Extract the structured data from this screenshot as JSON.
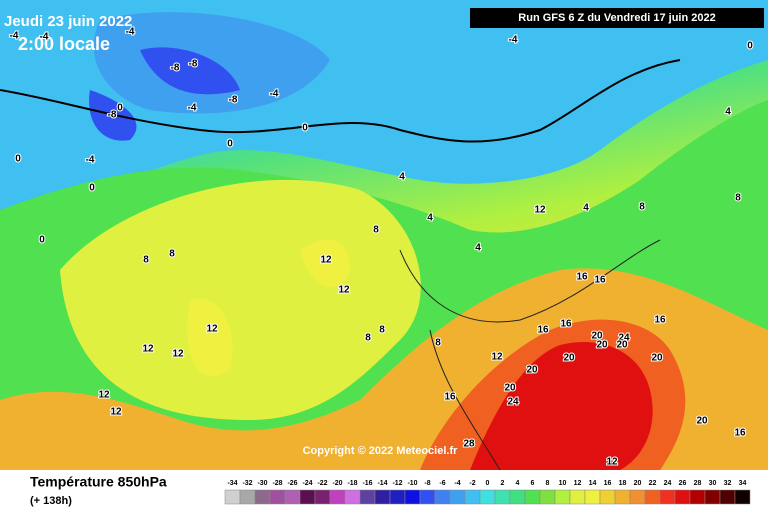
{
  "header": {
    "date": "Jeudi 23 juin 2022",
    "time": "2:00 locale",
    "run": "Run GFS 6 Z du Vendredi 17 juin 2022"
  },
  "copyright": "Copyright © 2022 Meteociel.fr",
  "footer": {
    "title": "Température 850hPa",
    "subtitle": "(+ 138h)"
  },
  "legend": {
    "ticks": [
      -34,
      -32,
      -30,
      -28,
      -26,
      -24,
      -22,
      -20,
      -18,
      -16,
      -14,
      -12,
      -10,
      -8,
      -6,
      -4,
      -2,
      0,
      2,
      4,
      6,
      8,
      10,
      12,
      14,
      16,
      18,
      20,
      22,
      24,
      26,
      28,
      30,
      32,
      34
    ],
    "colors": [
      "#d0d0d0",
      "#a8a8a8",
      "#8c6a8c",
      "#a050a0",
      "#b060b0",
      "#5a1050",
      "#7a2070",
      "#c040c0",
      "#d070e0",
      "#6040a0",
      "#3020a0",
      "#2020c0",
      "#1010e0",
      "#3050f0",
      "#4080f0",
      "#40a0f0",
      "#40c0f0",
      "#40e0e0",
      "#40e0b0",
      "#40e080",
      "#50e050",
      "#80e040",
      "#b0f040",
      "#e0f040",
      "#f0f040",
      "#f0d030",
      "#f0b030",
      "#f09030",
      "#f06020",
      "#f03020",
      "#e01010",
      "#b00000",
      "#800000",
      "#500000",
      "#100000"
    ]
  },
  "contour_labels": [
    -4,
    -4,
    -8,
    -8,
    -8,
    -4,
    -8,
    -4,
    -4,
    -4,
    0,
    0,
    0,
    0,
    -4,
    0,
    0,
    4,
    0,
    4,
    8,
    8,
    4,
    8,
    8,
    8,
    8,
    12,
    12,
    12,
    12,
    12,
    12,
    12,
    12,
    16,
    16,
    16,
    12,
    16,
    20,
    24,
    20,
    20,
    20,
    24,
    28,
    16,
    20,
    20,
    16,
    16,
    20,
    20,
    4,
    4,
    8,
    8,
    12
  ]
}
